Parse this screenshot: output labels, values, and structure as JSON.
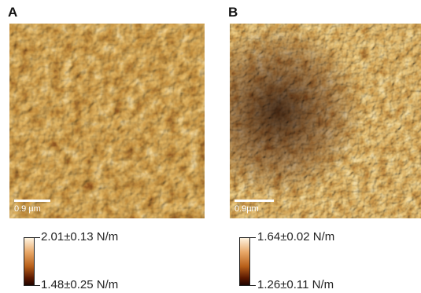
{
  "panels": [
    {
      "letter": "A",
      "scale_bar_label": "0.9 µm",
      "colorbar": {
        "max_label": "2.01±0.13 N/m",
        "min_label": "1.48±0.25 N/m"
      }
    },
    {
      "letter": "B",
      "scale_bar_label": "0.9µm",
      "colorbar": {
        "max_label": "1.64±0.02 N/m",
        "min_label": "1.26±0.11 N/m"
      }
    }
  ],
  "colors": {
    "colormap_low": "#200500",
    "colormap_mid": "#b8601a",
    "colormap_high": "#fff4e0"
  }
}
